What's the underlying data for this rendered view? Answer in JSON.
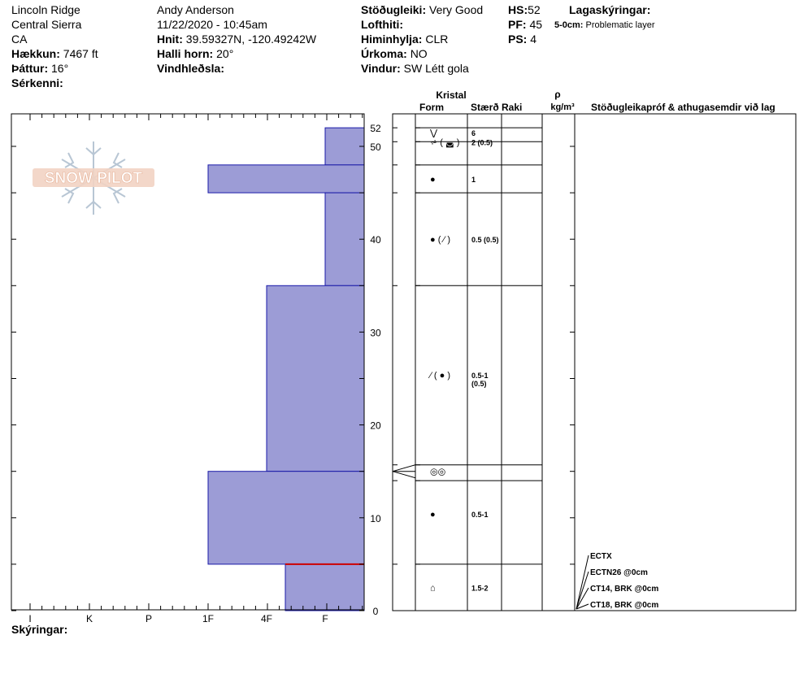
{
  "header": {
    "location": "Lincoln Ridge",
    "range": "Central Sierra",
    "state": "CA",
    "elevation_label": "Hækkun:",
    "elevation": "7467 ft",
    "aspect_label": "Þáttur:",
    "aspect": "16°",
    "features_label": "Sérkenni:",
    "observer": "Andy Anderson",
    "datetime": "11/22/2020 - 10:45am",
    "coords_label": "Hnit:",
    "coords": "39.59327N, -120.49242W",
    "slope_label": "Halli horn:",
    "slope": "20°",
    "wind_loading_label": "Vindhleðsla:",
    "stability_label": "Stöðugleiki:",
    "stability": "Very Good",
    "air_temp_label": "Lofthiti:",
    "sky_label": "Himinhylja:",
    "sky": "CLR",
    "precip_label": "Úrkoma:",
    "precip": "NO",
    "wind_label": "Vindur:",
    "wind": "SW Létt gola",
    "hs_label": "HS:",
    "hs": "52",
    "pf_label": "PF:",
    "pf": "45",
    "ps_label": "PS:",
    "ps": "4",
    "layer_notes_label": "Lagaskýringar:",
    "layer_note_depth": "5-0cm:",
    "layer_note_text": "Problematic layer"
  },
  "columns": {
    "crystal": "Kristal",
    "form": "Form",
    "size": "Stærð",
    "moisture": "Raki",
    "rho": "ρ",
    "density_unit": "kg/m³",
    "tests": "Stöðugleikapróf & athugasemdir við lag"
  },
  "footer": {
    "notes_label": "Skýringar:"
  },
  "logo": {
    "text": "SNOW PILOT"
  },
  "colors": {
    "bar_fill": "#9c9cd6",
    "bar_stroke": "#1a1aa8",
    "problem_line": "#cc0000"
  },
  "chart_data": {
    "type": "bar",
    "orientation": "horizontal",
    "y_axis": {
      "range": [
        0,
        52
      ],
      "ticks": [
        0,
        10,
        20,
        30,
        40,
        50
      ],
      "top_label": "52"
    },
    "x_axis": {
      "categories": [
        "I",
        "K",
        "P",
        "1F",
        "4F",
        "F"
      ]
    },
    "hardness_layers": [
      {
        "top": 52,
        "bottom": 48,
        "hardness": "F"
      },
      {
        "top": 48,
        "bottom": 45,
        "hardness": "1F"
      },
      {
        "top": 45,
        "bottom": 35,
        "hardness": "F"
      },
      {
        "top": 35,
        "bottom": 15,
        "hardness": "4F"
      },
      {
        "top": 15,
        "bottom": 5,
        "hardness": "1F"
      },
      {
        "top": 5,
        "bottom": 0,
        "hardness": "4F-F"
      }
    ],
    "problematic_layer_depth": 5,
    "layer_boundaries": [
      52,
      50.5,
      48,
      45,
      35,
      15.7,
      14,
      5,
      0
    ],
    "crystal_rows": [
      {
        "y": 51.5,
        "form": "⋁",
        "size": "6"
      },
      {
        "y": 50.5,
        "form": "⩫ ( ◛ )",
        "size": "2 (0.5)"
      },
      {
        "y": 46.5,
        "form": "●",
        "size": "1"
      },
      {
        "y": 40,
        "form": "● ( ⁄ )",
        "size": "0.5 (0.5)"
      },
      {
        "y": 25.4,
        "form": "⁄ ( ● )",
        "size": "0.5-1",
        "size2": "(0.5)"
      },
      {
        "y": 15,
        "form": "◎◎",
        "size": ""
      },
      {
        "y": 10.4,
        "form": "●",
        "size": "0.5-1"
      },
      {
        "y": 2.5,
        "form": "⌂",
        "size": "1.5-2"
      }
    ],
    "tests": [
      "ECTX",
      "ECTN26 @0cm",
      "CT14, BRK @0cm",
      "CT18, BRK @0cm"
    ],
    "test_marker_depth": 15
  }
}
